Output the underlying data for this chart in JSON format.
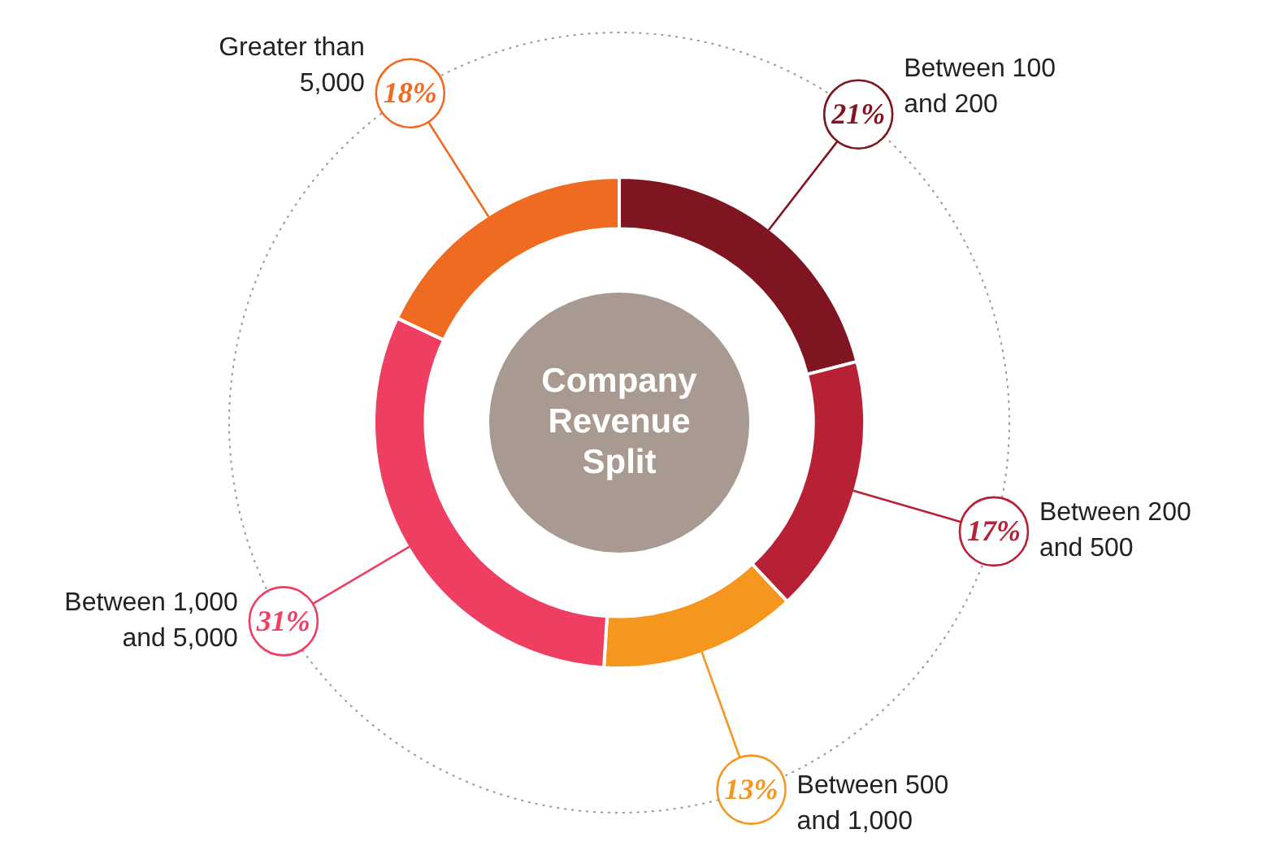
{
  "chart_data": {
    "type": "donut",
    "title": "Company Revenue Split",
    "categories": [
      "Between 100 and 200",
      "Between 200 and 500",
      "Between 500 and 1,000",
      "Between 1,000 and 5,000",
      "Greater than 5,000"
    ],
    "values": [
      21,
      17,
      13,
      31,
      18
    ],
    "value_labels": [
      "21%",
      "17%",
      "13%",
      "31%",
      "18%"
    ],
    "colors": [
      "#7f1520",
      "#b82035",
      "#f5961e",
      "#ef3e61",
      "#f06b22"
    ],
    "legend": false
  }
}
